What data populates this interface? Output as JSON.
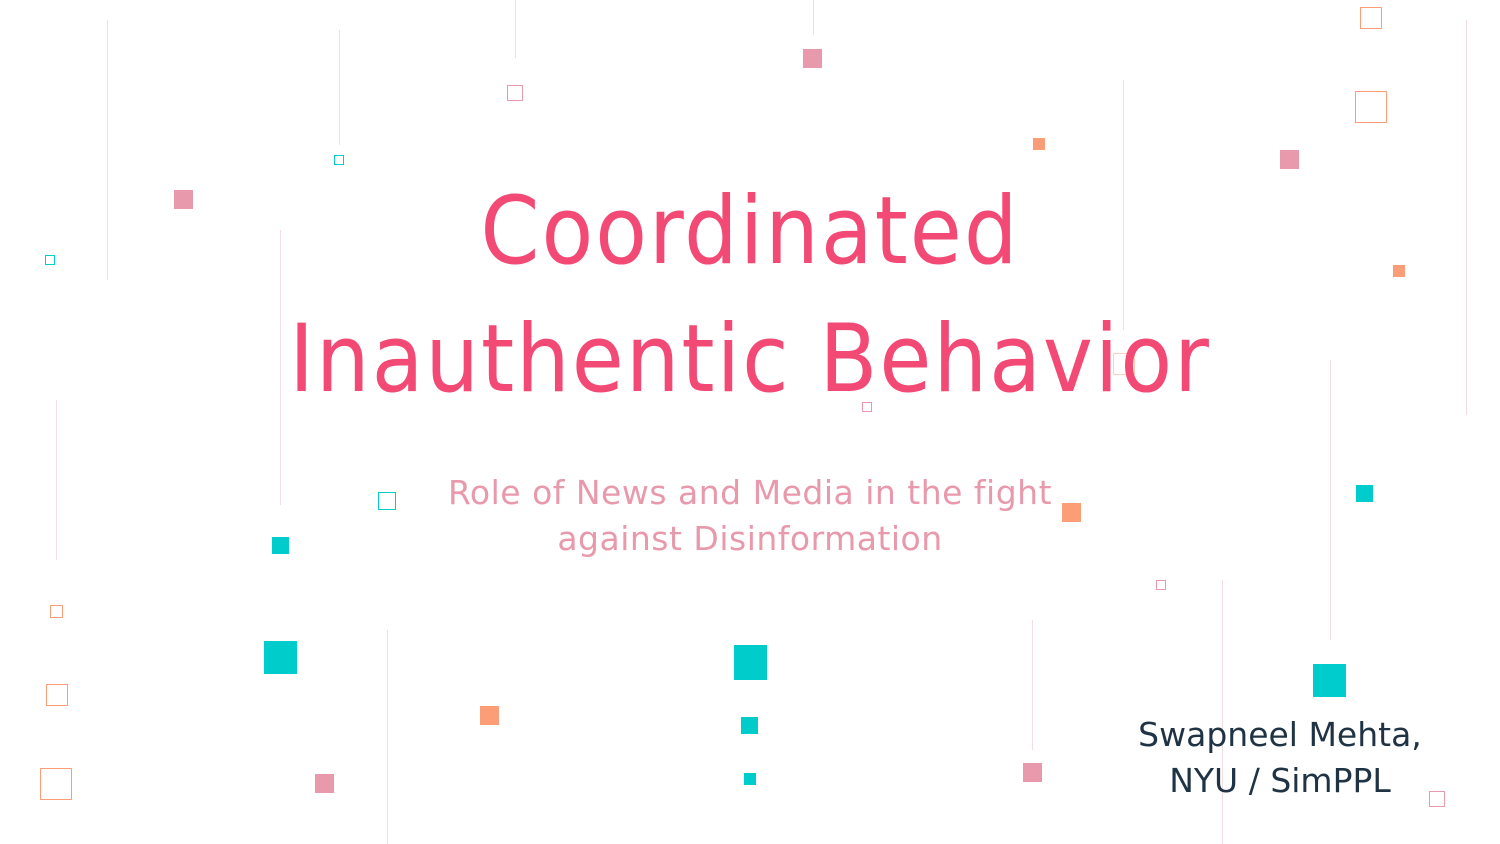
{
  "slide": {
    "title_line1": "Coordinated",
    "title_line2": "Inauthentic Behavior",
    "subtitle_line1": "Role of News and Media in the fight",
    "subtitle_line2": "against Disinformation",
    "author_line1": "Swapneel Mehta,",
    "author_line2": "NYU / SimPPL"
  },
  "colors": {
    "title": "#f24a75",
    "subtitle": "#e899ab",
    "author": "#1f3345",
    "pink": "#e899ab",
    "orange": "#fb9e78",
    "teal": "#00cccc",
    "background": "#ffffff"
  }
}
